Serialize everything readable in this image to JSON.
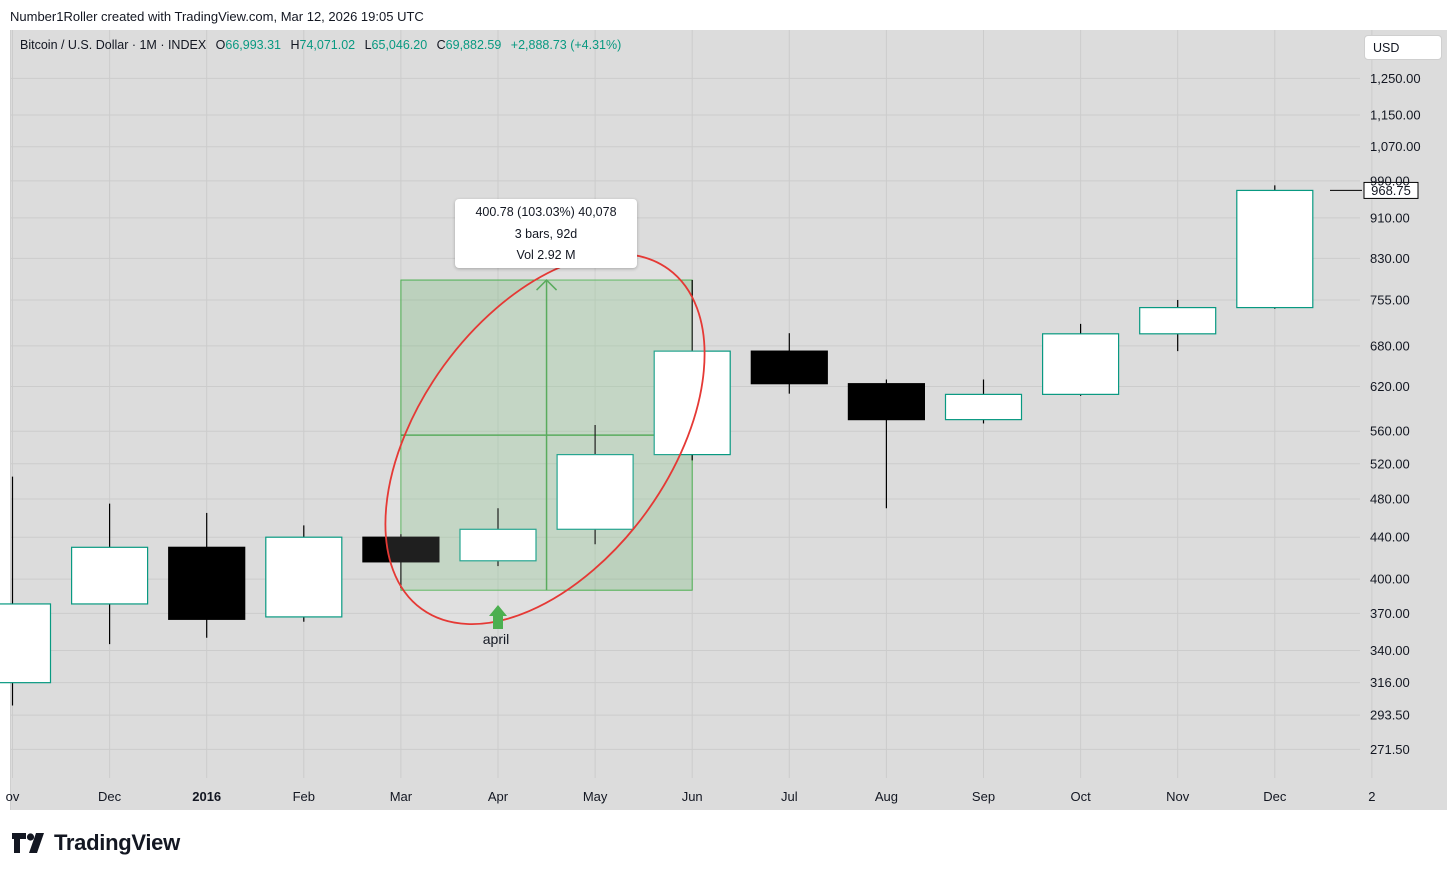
{
  "caption": "Number1Roller created with TradingView.com, Mar 12, 2026 19:05 UTC",
  "legend": {
    "symbol": "Bitcoin / U.S. Dollar · 1M · INDEX",
    "open_label": "O",
    "open": "66,993.31",
    "high_label": "H",
    "high": "74,071.02",
    "low_label": "L",
    "low": "65,046.20",
    "close_label": "C",
    "close": "69,882.59",
    "change": "+2,888.73 (+4.31%)"
  },
  "currency_button": "USD",
  "measure_tooltip": {
    "line1": "400.78 (103.03%) 40,078",
    "line2": "3 bars, 92d",
    "line3": "Vol 2.92 M"
  },
  "annotation_label": "april",
  "last_price_label": "968.75",
  "footer": {
    "brand": "TradingView"
  },
  "colors": {
    "up_border": "#089981",
    "down_fill": "#000000",
    "up_fill": "#ffffff",
    "range_fill": "#4caf50",
    "ellipse": "#e53935",
    "background": "#dcdcdc"
  },
  "chart_data": {
    "type": "candlestick",
    "scale": "log",
    "x_ticks": [
      "ov",
      "Dec",
      "2016",
      "Feb",
      "Mar",
      "Apr",
      "May",
      "Jun",
      "Jul",
      "Aug",
      "Sep",
      "Oct",
      "Nov",
      "Dec",
      "2"
    ],
    "y_ticks": [
      "1,250.00",
      "1,150.00",
      "1,070.00",
      "990.00",
      "910.00",
      "830.00",
      "755.00",
      "680.00",
      "620.00",
      "560.00",
      "520.00",
      "480.00",
      "440.00",
      "400.00",
      "370.00",
      "340.00",
      "316.00",
      "293.50",
      "271.50"
    ],
    "y_tick_values": [
      1250,
      1150,
      1070,
      990,
      910,
      830,
      755,
      680,
      620,
      560,
      520,
      480,
      440,
      400,
      370,
      340,
      316,
      293.5,
      271.5
    ],
    "ylim": [
      262,
      1280
    ],
    "candles": [
      {
        "month": "2015-11",
        "open": 316,
        "high": 505,
        "low": 300,
        "close": 378
      },
      {
        "month": "2015-12",
        "open": 378,
        "high": 475,
        "low": 345,
        "close": 430
      },
      {
        "month": "2016-01",
        "open": 430,
        "high": 465,
        "low": 350,
        "close": 365
      },
      {
        "month": "2016-02",
        "open": 367,
        "high": 452,
        "low": 363,
        "close": 440
      },
      {
        "month": "2016-03",
        "open": 440,
        "high": 443,
        "low": 392,
        "close": 416
      },
      {
        "month": "2016-04",
        "open": 417,
        "high": 470,
        "low": 412,
        "close": 448
      },
      {
        "month": "2016-05",
        "open": 448,
        "high": 568,
        "low": 433,
        "close": 531
      },
      {
        "month": "2016-06",
        "open": 531,
        "high": 790,
        "low": 524,
        "close": 672
      },
      {
        "month": "2016-07",
        "open": 672,
        "high": 700,
        "low": 610,
        "close": 624
      },
      {
        "month": "2016-08",
        "open": 624,
        "high": 630,
        "low": 470,
        "close": 575
      },
      {
        "month": "2016-09",
        "open": 575,
        "high": 630,
        "low": 570,
        "close": 609
      },
      {
        "month": "2016-10",
        "open": 609,
        "high": 715,
        "low": 607,
        "close": 699
      },
      {
        "month": "2016-11",
        "open": 699,
        "high": 755,
        "low": 672,
        "close": 742
      },
      {
        "month": "2016-12",
        "open": 742,
        "high": 980,
        "low": 740,
        "close": 968.75
      }
    ],
    "measure_range": {
      "from_month": "2016-03",
      "to_month": "2016-06",
      "low": 390,
      "high": 790
    }
  }
}
